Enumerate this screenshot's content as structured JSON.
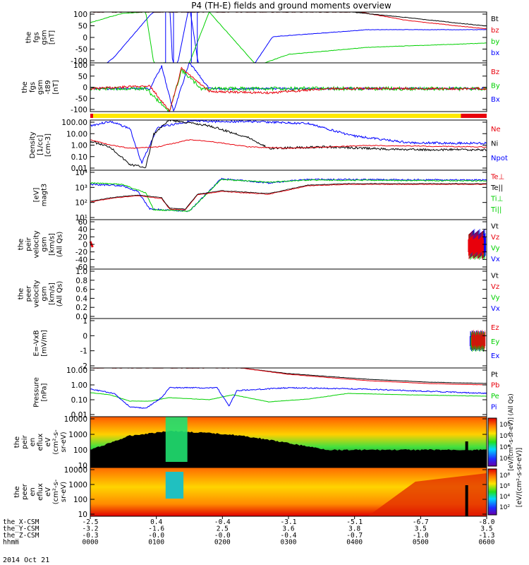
{
  "chart_data": {
    "type": "line",
    "title": "P4 (TH-E) fields and ground moments overview",
    "date": "2014 Oct 21",
    "x_axis": {
      "rows": [
        {
          "name": "the_X-CSM",
          "values": [
            "-2.5",
            "0.4",
            "-0.4",
            "-3.1",
            "-5.1",
            "-6.7",
            "-8.0"
          ]
        },
        {
          "name": "the_Y-CSM",
          "values": [
            "-3.2",
            "-1.6",
            "2.5",
            "3.6",
            "3.8",
            "3.5",
            "3.5"
          ]
        },
        {
          "name": "the_Z-CSM",
          "values": [
            "-0.3",
            "-0.0",
            "-0.0",
            "-0.4",
            "-0.7",
            "-1.0",
            "-1.3"
          ]
        },
        {
          "name": "hhmm",
          "values": [
            "0000",
            "0100",
            "0200",
            "0300",
            "0400",
            "0500",
            "0600"
          ]
        }
      ]
    },
    "panels": [
      {
        "id": "fgs-gsm",
        "ylabel": [
          "the",
          "fgs",
          "gsm",
          "[nT]"
        ],
        "ticks": [
          "100",
          "50",
          "0",
          "-50",
          "-100"
        ],
        "legend": [
          {
            "label": "Bt",
            "color": "#000000"
          },
          {
            "label": "bz",
            "color": "#e8000b"
          },
          {
            "label": "by",
            "color": "#00d000"
          },
          {
            "label": "bx",
            "color": "#0000ff"
          }
        ]
      },
      {
        "id": "fgs-gsm-t89",
        "ylabel": [
          "the",
          "fgs",
          "gsm",
          "-t89",
          "[nT]"
        ],
        "ticks": [
          "100",
          "50",
          "0",
          "-50",
          "-100"
        ],
        "legend": [
          {
            "label": "Bz",
            "color": "#e8000b"
          },
          {
            "label": "By",
            "color": "#00d000"
          },
          {
            "label": "Bx",
            "color": "#0000ff"
          }
        ]
      },
      {
        "id": "density",
        "ylabel": [
          "Density",
          "[1/cc]",
          "[cm-3]"
        ],
        "ticks": [
          "100.00",
          "10.00",
          "1.00",
          "0.10",
          "0.01"
        ],
        "legend": [
          {
            "label": "Ne",
            "color": "#e8000b"
          },
          {
            "label": "Ni",
            "color": "#000000"
          },
          {
            "label": "Npot",
            "color": "#0000ff"
          }
        ]
      },
      {
        "id": "temperature",
        "ylabel": [
          "[eV]",
          "magt3"
        ],
        "ticks": [
          "10⁴",
          "10³",
          "10²",
          "10¹"
        ],
        "legend": [
          {
            "label": "Te⊥",
            "color": "#e8000b"
          },
          {
            "label": "Te||",
            "color": "#000000"
          },
          {
            "label": "Ti⊥",
            "color": "#00d000"
          },
          {
            "label": "Ti||",
            "color": "#00d000"
          }
        ]
      },
      {
        "id": "peir-velocity",
        "ylabel": [
          "the",
          "peir",
          "velocity",
          "gsm",
          "[km/s]",
          "(All Qs)"
        ],
        "ticks": [
          "60",
          "40",
          "20",
          "0",
          "-20",
          "-40",
          "-60"
        ],
        "legend": [
          {
            "label": "Vt",
            "color": "#000000"
          },
          {
            "label": "Vz",
            "color": "#e8000b"
          },
          {
            "label": "Vy",
            "color": "#00d000"
          },
          {
            "label": "Vx",
            "color": "#0000ff"
          }
        ]
      },
      {
        "id": "peer-velocity",
        "ylabel": [
          "the",
          "peer",
          "velocity",
          "gsm",
          "[km/s]",
          "(All Qs)"
        ],
        "ticks": [
          "1.0",
          "0.8",
          "0.6",
          "0.4",
          "0.2",
          "0.0"
        ],
        "legend": [
          {
            "label": "Vt",
            "color": "#000000"
          },
          {
            "label": "Vz",
            "color": "#e8000b"
          },
          {
            "label": "Vy",
            "color": "#00d000"
          },
          {
            "label": "Vx",
            "color": "#0000ff"
          }
        ]
      },
      {
        "id": "e-field",
        "ylabel": [
          "E=-VxB",
          "[mV/m]"
        ],
        "ticks": [
          "1",
          "0",
          "-1",
          "-2"
        ],
        "legend": [
          {
            "label": "Ez",
            "color": "#e8000b"
          },
          {
            "label": "Ey",
            "color": "#00d000"
          },
          {
            "label": "Ex",
            "color": "#0000ff"
          }
        ]
      },
      {
        "id": "pressure",
        "ylabel": [
          "Pressure",
          "[nPa]"
        ],
        "ticks": [
          "10.00",
          "1.00",
          "0.10",
          "0.01"
        ],
        "legend": [
          {
            "label": "Pt",
            "color": "#000000"
          },
          {
            "label": "Pb",
            "color": "#e8000b"
          },
          {
            "label": "Pe",
            "color": "#00d000"
          },
          {
            "label": "Pi",
            "color": "#0000ff"
          }
        ]
      },
      {
        "id": "peir-eflux",
        "ylabel": [
          "the",
          "peir",
          "en",
          "eflux",
          "eV",
          "(cm²-s-",
          "sr-eV)"
        ],
        "ticks": [
          "10000",
          "1000",
          "100",
          "10"
        ],
        "colorbar_ticks": [
          "10⁸",
          "10⁶",
          "10⁴",
          "10²"
        ]
      },
      {
        "id": "peer-eflux",
        "ylabel": [
          "the",
          "peer",
          "en",
          "eflux",
          "eV",
          "(cm²-s-",
          "sr-eV)"
        ],
        "ticks": [
          "10000",
          "1000",
          "100",
          "10"
        ],
        "colorbar_ticks": [
          "10⁸",
          "10⁶",
          "10⁴",
          "10²"
        ]
      }
    ],
    "colorbar_label": "[eV/(cm²-s-sr-eV)]",
    "colorbar_label_ion": "[eV/(cm²-s-sr-eV)] (All Qs)"
  }
}
